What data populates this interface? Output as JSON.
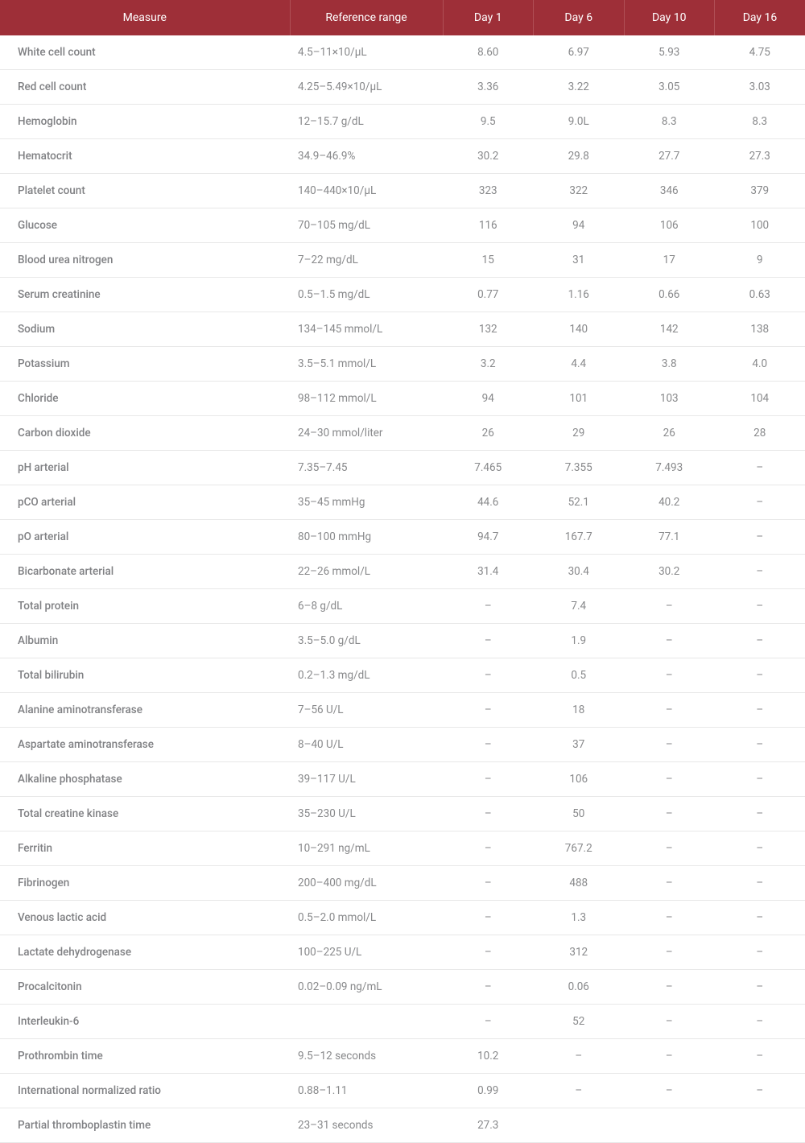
{
  "table": {
    "header_bg": "#9e2f38",
    "header_text_color": "#ffffff",
    "body_text_color": "#88898b",
    "row_border_color": "#e8e8e8",
    "font_size_header": 14,
    "font_size_body": 13.5,
    "columns": [
      {
        "label": "Measure",
        "key": "measure"
      },
      {
        "label": "Reference range",
        "key": "ref"
      },
      {
        "label": "Day 1",
        "key": "d1"
      },
      {
        "label": "Day 6",
        "key": "d6"
      },
      {
        "label": "Day 10",
        "key": "d10"
      },
      {
        "label": "Day 16",
        "key": "d16"
      }
    ],
    "rows": [
      {
        "measure": "White cell count",
        "ref": "4.5–11×10/µL",
        "d1": "8.60",
        "d6": "6.97",
        "d10": "5.93",
        "d16": "4.75"
      },
      {
        "measure": "Red cell count",
        "ref": "4.25–5.49×10/µL",
        "d1": "3.36",
        "d6": "3.22",
        "d10": "3.05",
        "d16": "3.03"
      },
      {
        "measure": "Hemoglobin",
        "ref": "12–15.7 g/dL",
        "d1": "9.5",
        "d6": "9.0L",
        "d10": "8.3",
        "d16": "8.3"
      },
      {
        "measure": "Hematocrit",
        "ref": "34.9–46.9%",
        "d1": "30.2",
        "d6": "29.8",
        "d10": "27.7",
        "d16": "27.3"
      },
      {
        "measure": "Platelet count",
        "ref": "140–440×10/µL",
        "d1": "323",
        "d6": "322",
        "d10": "346",
        "d16": "379"
      },
      {
        "measure": "Glucose",
        "ref": "70–105 mg/dL",
        "d1": "116",
        "d6": "94",
        "d10": "106",
        "d16": "100"
      },
      {
        "measure": "Blood urea nitrogen",
        "ref": "7–22 mg/dL",
        "d1": "15",
        "d6": "31",
        "d10": "17",
        "d16": "9"
      },
      {
        "measure": "Serum creatinine",
        "ref": "0.5–1.5 mg/dL",
        "d1": "0.77",
        "d6": "1.16",
        "d10": "0.66",
        "d16": "0.63"
      },
      {
        "measure": "Sodium",
        "ref": "134–145 mmol/L",
        "d1": "132",
        "d6": "140",
        "d10": "142",
        "d16": "138"
      },
      {
        "measure": "Potassium",
        "ref": "3.5–5.1 mmol/L",
        "d1": "3.2",
        "d6": "4.4",
        "d10": "3.8",
        "d16": "4.0"
      },
      {
        "measure": "Chloride",
        "ref": "98–112 mmol/L",
        "d1": "94",
        "d6": "101",
        "d10": "103",
        "d16": "104"
      },
      {
        "measure": "Carbon dioxide",
        "ref": "24–30 mmol/liter",
        "d1": "26",
        "d6": "29",
        "d10": "26",
        "d16": "28"
      },
      {
        "measure": "pH arterial",
        "ref": "7.35–7.45",
        "d1": "7.465",
        "d6": "7.355",
        "d10": "7.493",
        "d16": "–"
      },
      {
        "measure": "pCO arterial",
        "ref": "35–45 mmHg",
        "d1": "44.6",
        "d6": "52.1",
        "d10": "40.2",
        "d16": "–"
      },
      {
        "measure": "pO arterial",
        "ref": "80–100 mmHg",
        "d1": "94.7",
        "d6": "167.7",
        "d10": "77.1",
        "d16": "–"
      },
      {
        "measure": "Bicarbonate arterial",
        "ref": "22–26 mmol/L",
        "d1": "31.4",
        "d6": "30.4",
        "d10": "30.2",
        "d16": "–"
      },
      {
        "measure": "Total protein",
        "ref": "6–8 g/dL",
        "d1": "–",
        "d6": "7.4",
        "d10": "–",
        "d16": "–"
      },
      {
        "measure": "Albumin",
        "ref": "3.5–5.0 g/dL",
        "d1": "–",
        "d6": "1.9",
        "d10": "–",
        "d16": "–"
      },
      {
        "measure": "Total bilirubin",
        "ref": "0.2–1.3 mg/dL",
        "d1": "–",
        "d6": "0.5",
        "d10": "–",
        "d16": "–"
      },
      {
        "measure": "Alanine aminotransferase",
        "ref": "7–56 U/L",
        "d1": "–",
        "d6": "18",
        "d10": "–",
        "d16": "–"
      },
      {
        "measure": "Aspartate aminotransferase",
        "ref": "8–40 U/L",
        "d1": "–",
        "d6": "37",
        "d10": "–",
        "d16": "–"
      },
      {
        "measure": "Alkaline phosphatase",
        "ref": "39–117 U/L",
        "d1": "–",
        "d6": "106",
        "d10": "–",
        "d16": "–"
      },
      {
        "measure": "Total creatine kinase",
        "ref": "35–230 U/L",
        "d1": "–",
        "d6": "50",
        "d10": "–",
        "d16": "–"
      },
      {
        "measure": "Ferritin",
        "ref": "10–291 ng/mL",
        "d1": "–",
        "d6": "767.2",
        "d10": "–",
        "d16": "–"
      },
      {
        "measure": "Fibrinogen",
        "ref": "200–400 mg/dL",
        "d1": "–",
        "d6": "488",
        "d10": "–",
        "d16": "–"
      },
      {
        "measure": "Venous lactic acid",
        "ref": "0.5–2.0 mmol/L",
        "d1": "–",
        "d6": "1.3",
        "d10": "–",
        "d16": "–"
      },
      {
        "measure": "Lactate dehydrogenase",
        "ref": "100–225 U/L",
        "d1": "–",
        "d6": "312",
        "d10": "–",
        "d16": "–"
      },
      {
        "measure": "Procalcitonin",
        "ref": "0.02–0.09 ng/mL",
        "d1": "–",
        "d6": "0.06",
        "d10": "–",
        "d16": "–"
      },
      {
        "measure": "Interleukin-6",
        "ref": "",
        "d1": "–",
        "d6": "52",
        "d10": "–",
        "d16": "–"
      },
      {
        "measure": "Prothrombin time",
        "ref": "9.5–12 seconds",
        "d1": "10.2",
        "d6": "–",
        "d10": "–",
        "d16": "–"
      },
      {
        "measure": "International normalized ratio",
        "ref": "0.88–1.11",
        "d1": "0.99",
        "d6": "–",
        "d10": "–",
        "d16": "–"
      },
      {
        "measure": "Partial thromboplastin time",
        "ref": "23–31 seconds",
        "d1": "27.3",
        "d6": "",
        "d10": "",
        "d16": ""
      }
    ]
  }
}
